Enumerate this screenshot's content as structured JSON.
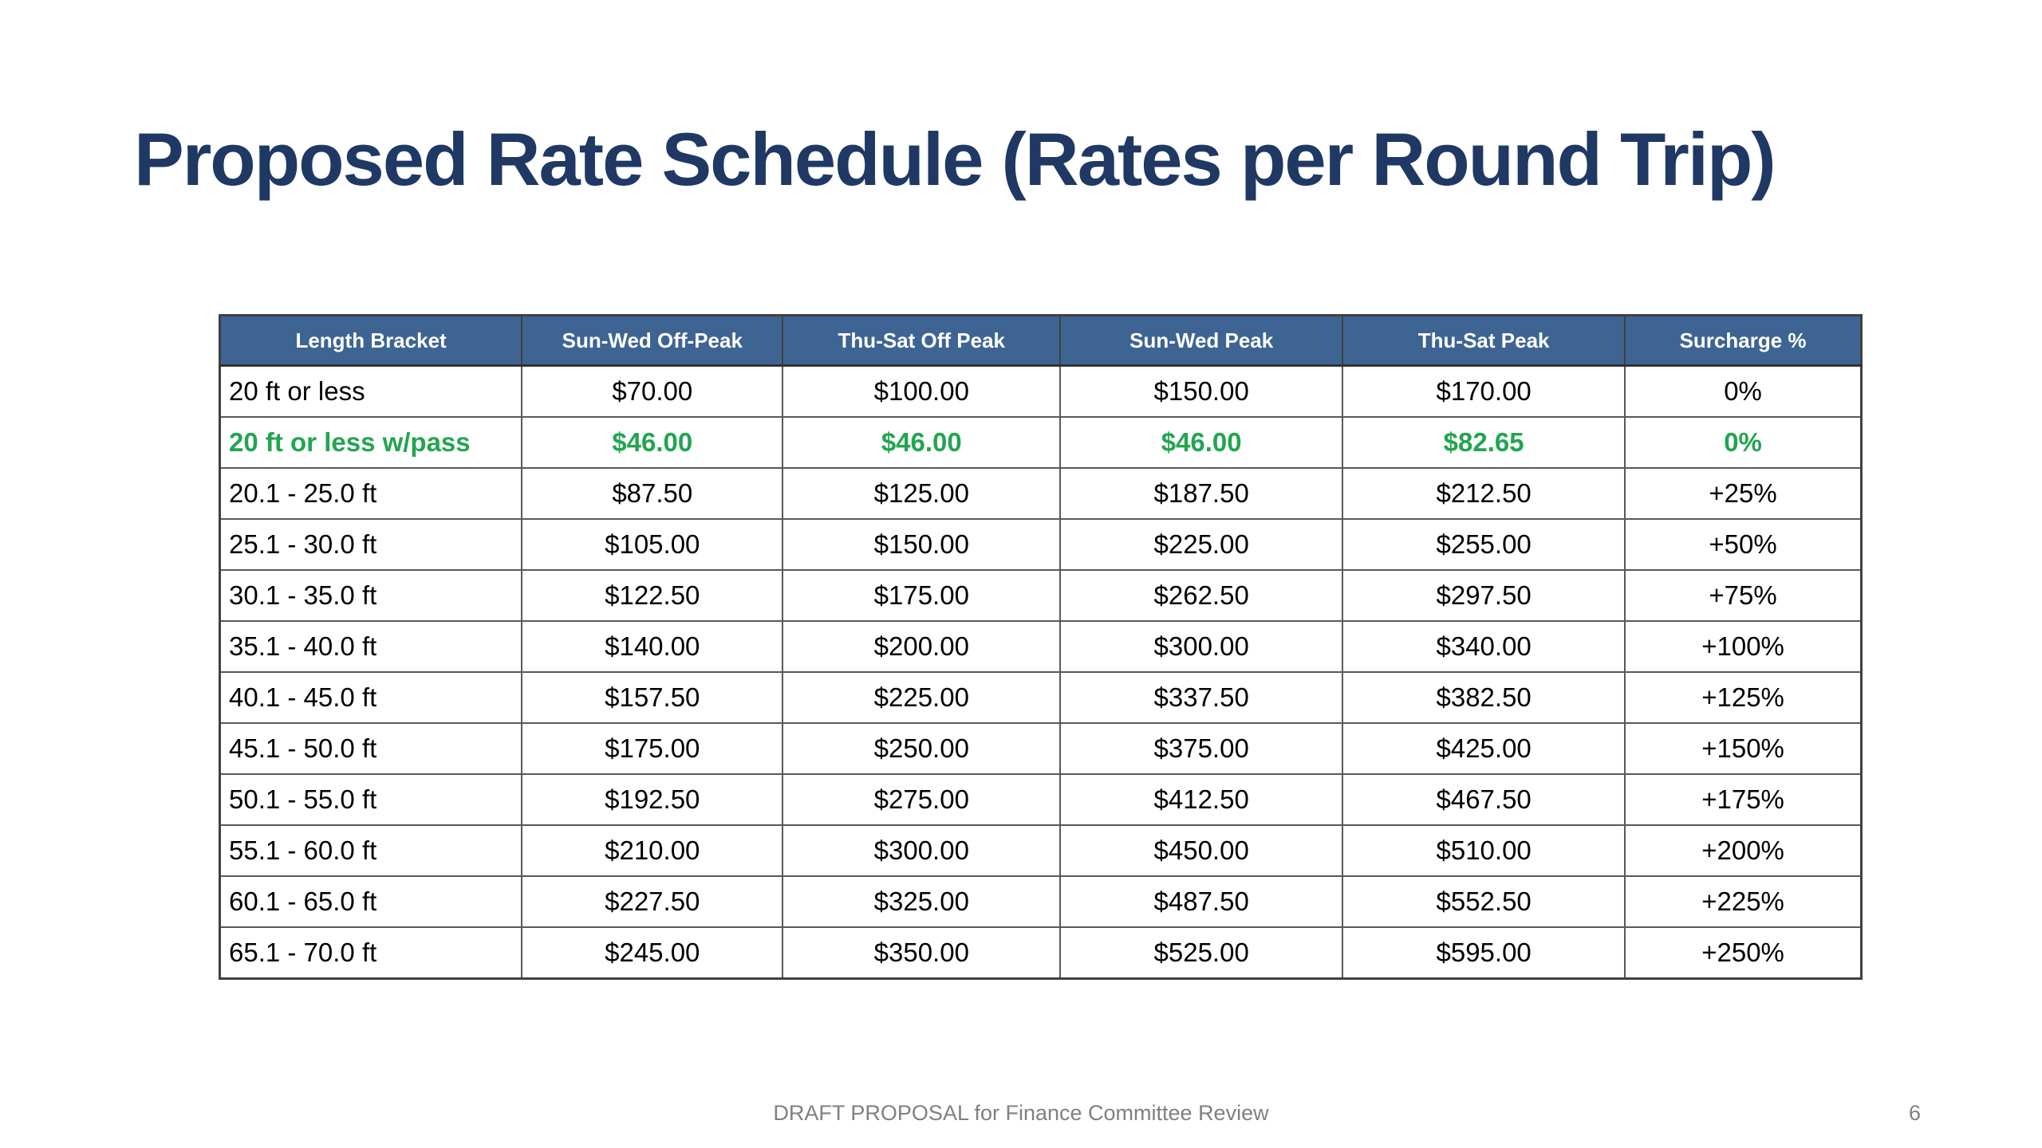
{
  "slide": {
    "title": "Proposed Rate Schedule (Rates per Round Trip)",
    "footer_text": "DRAFT PROPOSAL for Finance Committee Review",
    "page_number": "6"
  },
  "colors": {
    "title_navy": "#1F3864",
    "header_bg": "#3E6493",
    "header_text": "#FFFFFF",
    "highlight_green": "#22A550",
    "body_text": "#000000",
    "grid_line": "#595959",
    "footer_gray": "#808080"
  },
  "table": {
    "columns": [
      "Length Bracket",
      "Sun-Wed Off-Peak",
      "Thu-Sat Off Peak",
      "Sun-Wed Peak",
      "Thu-Sat Peak",
      "Surcharge %"
    ],
    "rows": [
      {
        "label": "20 ft or less",
        "cells": [
          "$70.00",
          "$100.00",
          "$150.00",
          "$170.00",
          "0%"
        ],
        "highlight": false
      },
      {
        "label": "20 ft or less w/pass",
        "cells": [
          "$46.00",
          "$46.00",
          "$46.00",
          "$82.65",
          "0%"
        ],
        "highlight": true
      },
      {
        "label": "20.1 - 25.0 ft",
        "cells": [
          "$87.50",
          "$125.00",
          "$187.50",
          "$212.50",
          "+25%"
        ],
        "highlight": false
      },
      {
        "label": "25.1 - 30.0 ft",
        "cells": [
          "$105.00",
          "$150.00",
          "$225.00",
          "$255.00",
          "+50%"
        ],
        "highlight": false
      },
      {
        "label": "30.1 - 35.0 ft",
        "cells": [
          "$122.50",
          "$175.00",
          "$262.50",
          "$297.50",
          "+75%"
        ],
        "highlight": false
      },
      {
        "label": "35.1 - 40.0 ft",
        "cells": [
          "$140.00",
          "$200.00",
          "$300.00",
          "$340.00",
          "+100%"
        ],
        "highlight": false
      },
      {
        "label": "40.1 - 45.0 ft",
        "cells": [
          "$157.50",
          "$225.00",
          "$337.50",
          "$382.50",
          "+125%"
        ],
        "highlight": false
      },
      {
        "label": "45.1 - 50.0 ft",
        "cells": [
          "$175.00",
          "$250.00",
          "$375.00",
          "$425.00",
          "+150%"
        ],
        "highlight": false
      },
      {
        "label": "50.1 - 55.0 ft",
        "cells": [
          "$192.50",
          "$275.00",
          "$412.50",
          "$467.50",
          "+175%"
        ],
        "highlight": false
      },
      {
        "label": "55.1 - 60.0 ft",
        "cells": [
          "$210.00",
          "$300.00",
          "$450.00",
          "$510.00",
          "+200%"
        ],
        "highlight": false
      },
      {
        "label": "60.1 - 65.0 ft",
        "cells": [
          "$227.50",
          "$325.00",
          "$487.50",
          "$552.50",
          "+225%"
        ],
        "highlight": false
      },
      {
        "label": "65.1 - 70.0 ft",
        "cells": [
          "$245.00",
          "$350.00",
          "$525.00",
          "$595.00",
          "+250%"
        ],
        "highlight": false
      }
    ]
  }
}
